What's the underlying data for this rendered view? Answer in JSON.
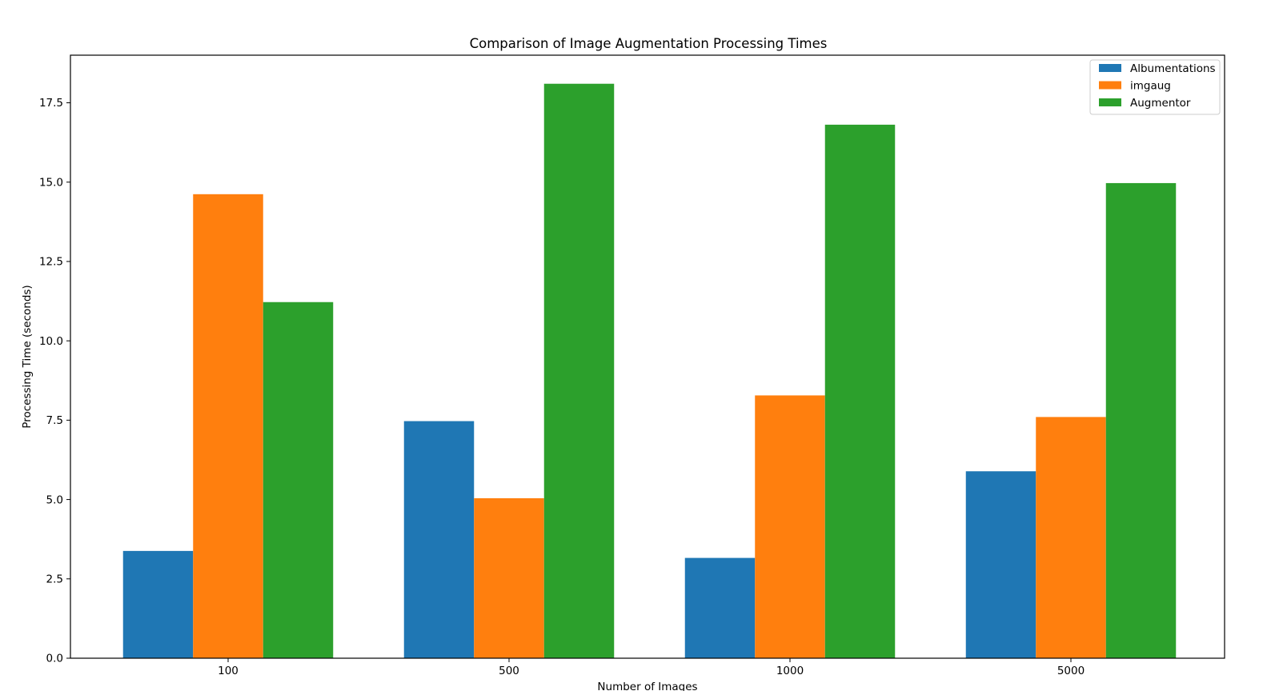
{
  "chart_data": {
    "type": "bar",
    "title": "Comparison of Image Augmentation Processing Times",
    "xlabel": "Number of Images",
    "ylabel": "Processing Time (seconds)",
    "categories": [
      "100",
      "500",
      "1000",
      "5000"
    ],
    "ylim": [
      0,
      19.0
    ],
    "yticks": [
      0.0,
      2.5,
      5.0,
      7.5,
      10.0,
      12.5,
      15.0,
      17.5
    ],
    "ytick_labels": [
      "0.0",
      "2.5",
      "5.0",
      "7.5",
      "10.0",
      "12.5",
      "15.0",
      "17.5"
    ],
    "grid": false,
    "legend_position": "top-right",
    "series": [
      {
        "name": "Albumentations",
        "color": "#1f77b4",
        "values": [
          3.38,
          7.47,
          3.16,
          5.89
        ]
      },
      {
        "name": "imgaug",
        "color": "#ff7f0e",
        "values": [
          14.62,
          5.04,
          8.28,
          7.6
        ]
      },
      {
        "name": "Augmentor",
        "color": "#2ca02c",
        "values": [
          11.22,
          18.1,
          16.81,
          14.97
        ]
      }
    ]
  }
}
